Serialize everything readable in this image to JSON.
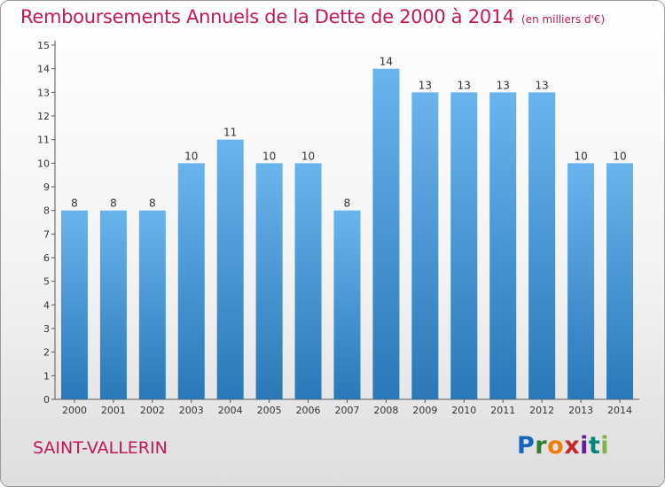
{
  "header": {
    "title": "Remboursements Annuels de la Dette de 2000 à 2014",
    "unit": "(en milliers d'€)"
  },
  "footer": {
    "commune": "SAINT-VALLERIN",
    "logo": "Proxiti",
    "logo_letters": [
      "P",
      "r",
      "o",
      "x",
      "i",
      "t",
      "i"
    ]
  },
  "colors": {
    "title": "#c2185b",
    "bar_top": "#6ab4ee",
    "bar_bottom": "#2a78b8"
  },
  "chart_data": {
    "type": "bar",
    "title": "Remboursements Annuels de la Dette de 2000 à 2014",
    "subtitle": "(en milliers d'€)",
    "categories": [
      "2000",
      "2001",
      "2002",
      "2003",
      "2004",
      "2005",
      "2006",
      "2007",
      "2008",
      "2009",
      "2010",
      "2011",
      "2012",
      "2013",
      "2014"
    ],
    "values": [
      8,
      8,
      8,
      10,
      11,
      10,
      10,
      8,
      14,
      13,
      13,
      13,
      13,
      10,
      10
    ],
    "ylim": [
      0,
      15
    ],
    "yticks": [
      0,
      1,
      2,
      3,
      4,
      5,
      6,
      7,
      8,
      9,
      10,
      11,
      12,
      13,
      14,
      15
    ],
    "grid": false,
    "data_labels": true
  }
}
